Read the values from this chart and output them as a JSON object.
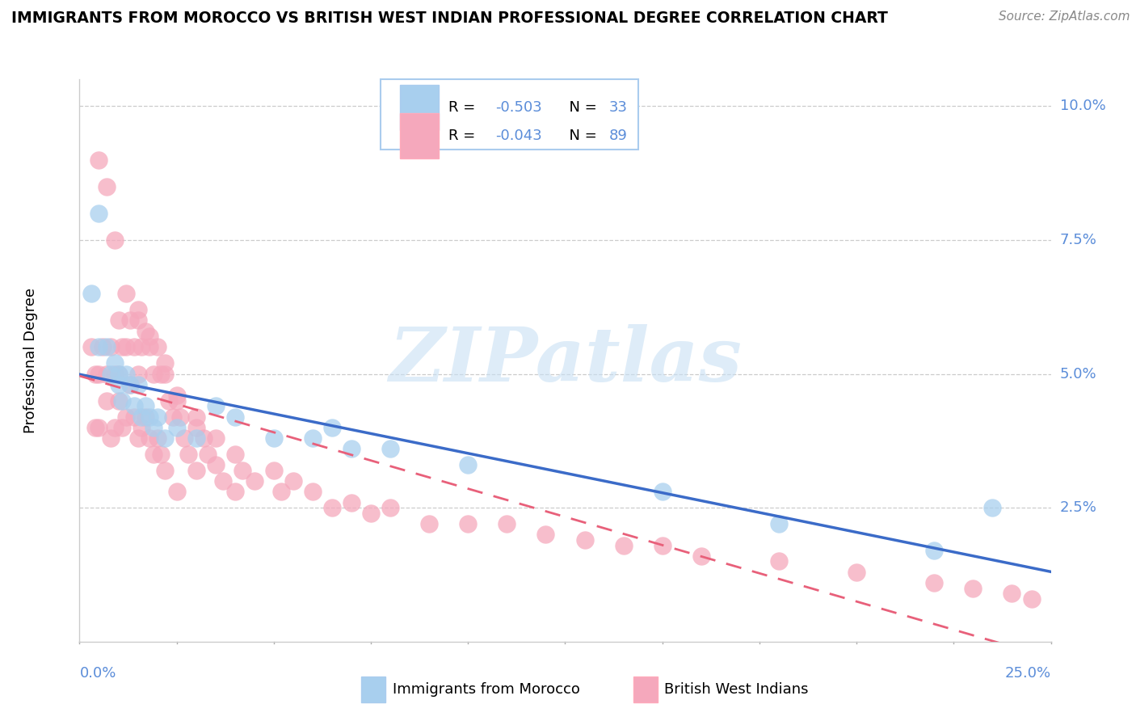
{
  "title": "IMMIGRANTS FROM MOROCCO VS BRITISH WEST INDIAN PROFESSIONAL DEGREE CORRELATION CHART",
  "source": "Source: ZipAtlas.com",
  "ylabel": "Professional Degree",
  "xlim": [
    0.0,
    0.25
  ],
  "ylim": [
    0.0,
    0.105
  ],
  "yticks": [
    0.025,
    0.05,
    0.075,
    0.1
  ],
  "ytick_labels": [
    "2.5%",
    "5.0%",
    "7.5%",
    "10.0%"
  ],
  "blue_color": "#A8CFEE",
  "pink_color": "#F5A8BC",
  "blue_line_color": "#3B6BC8",
  "pink_line_color": "#E8607A",
  "blue_text_color": "#5B8DD9",
  "watermark_color": "#C8E0F4",
  "morocco_x": [
    0.003,
    0.005,
    0.005,
    0.007,
    0.008,
    0.009,
    0.01,
    0.01,
    0.011,
    0.012,
    0.013,
    0.014,
    0.015,
    0.016,
    0.017,
    0.018,
    0.019,
    0.02,
    0.022,
    0.025,
    0.03,
    0.035,
    0.04,
    0.05,
    0.06,
    0.065,
    0.07,
    0.08,
    0.1,
    0.15,
    0.18,
    0.22,
    0.235
  ],
  "morocco_y": [
    0.065,
    0.08,
    0.055,
    0.055,
    0.05,
    0.052,
    0.05,
    0.048,
    0.045,
    0.05,
    0.048,
    0.044,
    0.048,
    0.042,
    0.044,
    0.042,
    0.04,
    0.042,
    0.038,
    0.04,
    0.038,
    0.044,
    0.042,
    0.038,
    0.038,
    0.04,
    0.036,
    0.036,
    0.033,
    0.028,
    0.022,
    0.017,
    0.025
  ],
  "bwi_x": [
    0.003,
    0.004,
    0.004,
    0.005,
    0.005,
    0.006,
    0.007,
    0.007,
    0.008,
    0.008,
    0.009,
    0.009,
    0.01,
    0.01,
    0.01,
    0.011,
    0.011,
    0.012,
    0.012,
    0.013,
    0.013,
    0.014,
    0.014,
    0.015,
    0.015,
    0.015,
    0.016,
    0.016,
    0.017,
    0.017,
    0.018,
    0.018,
    0.019,
    0.019,
    0.02,
    0.02,
    0.021,
    0.021,
    0.022,
    0.022,
    0.023,
    0.024,
    0.025,
    0.025,
    0.026,
    0.027,
    0.028,
    0.03,
    0.03,
    0.032,
    0.033,
    0.035,
    0.037,
    0.04,
    0.04,
    0.042,
    0.045,
    0.05,
    0.052,
    0.055,
    0.06,
    0.065,
    0.07,
    0.075,
    0.08,
    0.09,
    0.1,
    0.11,
    0.12,
    0.13,
    0.14,
    0.15,
    0.16,
    0.18,
    0.2,
    0.22,
    0.23,
    0.24,
    0.245,
    0.005,
    0.007,
    0.009,
    0.012,
    0.015,
    0.018,
    0.022,
    0.025,
    0.03,
    0.035
  ],
  "bwi_y": [
    0.055,
    0.04,
    0.05,
    0.05,
    0.04,
    0.055,
    0.045,
    0.05,
    0.055,
    0.038,
    0.05,
    0.04,
    0.06,
    0.05,
    0.045,
    0.04,
    0.055,
    0.042,
    0.055,
    0.06,
    0.048,
    0.055,
    0.042,
    0.06,
    0.05,
    0.038,
    0.055,
    0.04,
    0.058,
    0.042,
    0.055,
    0.038,
    0.05,
    0.035,
    0.055,
    0.038,
    0.05,
    0.035,
    0.05,
    0.032,
    0.045,
    0.042,
    0.045,
    0.028,
    0.042,
    0.038,
    0.035,
    0.04,
    0.032,
    0.038,
    0.035,
    0.033,
    0.03,
    0.035,
    0.028,
    0.032,
    0.03,
    0.032,
    0.028,
    0.03,
    0.028,
    0.025,
    0.026,
    0.024,
    0.025,
    0.022,
    0.022,
    0.022,
    0.02,
    0.019,
    0.018,
    0.018,
    0.016,
    0.015,
    0.013,
    0.011,
    0.01,
    0.009,
    0.008,
    0.09,
    0.085,
    0.075,
    0.065,
    0.062,
    0.057,
    0.052,
    0.046,
    0.042,
    0.038
  ],
  "legend_r1_val": "-0.503",
  "legend_n1_val": "33",
  "legend_r2_val": "-0.043",
  "legend_n2_val": "89",
  "series1_label": "Immigrants from Morocco",
  "series2_label": "British West Indians"
}
